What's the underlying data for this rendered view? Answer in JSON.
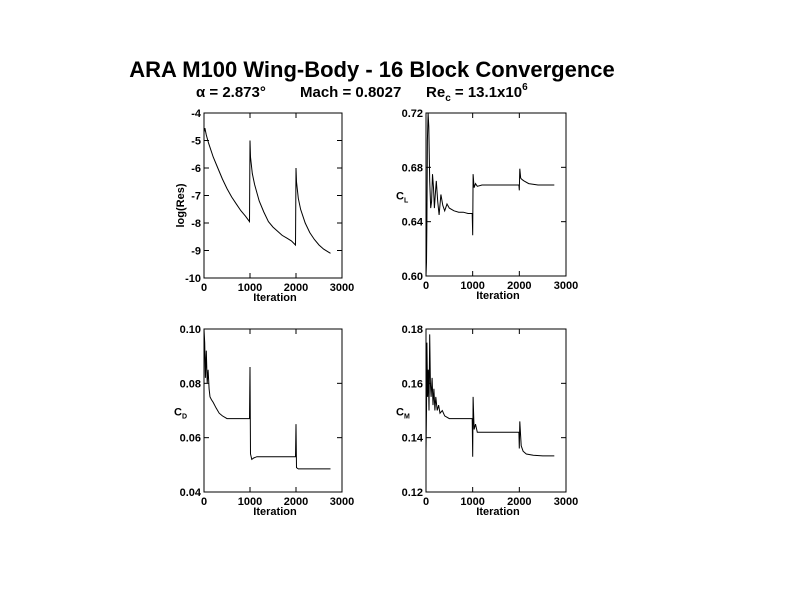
{
  "figure": {
    "title": "ARA M100 Wing-Body - 16 Block Convergence",
    "subtitle": {
      "alpha": "α = 2.873°",
      "mach": "Mach = 0.8027",
      "re_prefix": "Re",
      "re_sub": "c",
      "re_value": " = 13.1x10",
      "re_exp": "6"
    }
  },
  "chart_data": [
    {
      "type": "line",
      "id": "res",
      "xlabel": "Iteration",
      "ylabel": "log(Res)",
      "xlim": [
        0,
        3000
      ],
      "ylim": [
        -10,
        -4
      ],
      "xticks": [
        "0",
        "1000",
        "2000",
        "3000"
      ],
      "yticks": [
        "-10",
        "-9",
        "-8",
        "-7",
        "-6",
        "-5",
        "-4"
      ],
      "grid": false,
      "series": [
        {
          "x": [
            0,
            20,
            50,
            100,
            200,
            300,
            400,
            500,
            600,
            700,
            800,
            900,
            990,
            1000,
            1010,
            1050,
            1100,
            1150,
            1200,
            1300,
            1400,
            1500,
            1600,
            1700,
            1800,
            1900,
            1990,
            2000,
            2010,
            2050,
            2100,
            2200,
            2300,
            2400,
            2500,
            2600,
            2700,
            2750
          ],
          "y": [
            -4.7,
            -4.55,
            -4.8,
            -5.1,
            -5.6,
            -6.0,
            -6.4,
            -6.75,
            -7.05,
            -7.3,
            -7.55,
            -7.75,
            -7.95,
            -5.0,
            -5.6,
            -6.2,
            -6.6,
            -6.9,
            -7.2,
            -7.6,
            -7.95,
            -8.15,
            -8.3,
            -8.45,
            -8.55,
            -8.65,
            -8.8,
            -6.0,
            -6.5,
            -7.1,
            -7.5,
            -8.0,
            -8.35,
            -8.6,
            -8.8,
            -8.95,
            -9.05,
            -9.1
          ]
        }
      ]
    },
    {
      "type": "line",
      "id": "cl",
      "xlabel": "Iteration",
      "ylabel": "C",
      "ylabel_sub": "L",
      "xlim": [
        0,
        3000
      ],
      "ylim": [
        0.6,
        0.72
      ],
      "xticks": [
        "0",
        "1000",
        "2000",
        "3000"
      ],
      "yticks": [
        "0.60",
        "0.64",
        "0.68",
        "0.72"
      ],
      "grid": false,
      "series": [
        {
          "x": [
            0,
            10,
            20,
            30,
            45,
            60,
            80,
            100,
            120,
            140,
            160,
            180,
            200,
            220,
            250,
            280,
            320,
            360,
            400,
            450,
            500,
            600,
            700,
            800,
            900,
            990,
            1000,
            1010,
            1030,
            1060,
            1100,
            1200,
            1400,
            1600,
            1800,
            1990,
            2000,
            2010,
            2030,
            2060,
            2100,
            2200,
            2400,
            2600,
            2750
          ],
          "y": [
            0.6,
            0.61,
            0.64,
            0.7,
            0.72,
            0.71,
            0.67,
            0.65,
            0.655,
            0.675,
            0.665,
            0.65,
            0.66,
            0.67,
            0.655,
            0.645,
            0.66,
            0.652,
            0.648,
            0.653,
            0.65,
            0.648,
            0.647,
            0.647,
            0.646,
            0.646,
            0.63,
            0.675,
            0.665,
            0.668,
            0.666,
            0.667,
            0.667,
            0.667,
            0.667,
            0.667,
            0.663,
            0.679,
            0.672,
            0.671,
            0.67,
            0.668,
            0.667,
            0.667,
            0.667
          ]
        }
      ]
    },
    {
      "type": "line",
      "id": "cd",
      "xlabel": "Iteration",
      "ylabel": "C",
      "ylabel_sub": "D",
      "xlim": [
        0,
        3000
      ],
      "ylim": [
        0.04,
        0.1
      ],
      "xticks": [
        "0",
        "1000",
        "2000",
        "3000"
      ],
      "yticks": [
        "0.04",
        "0.06",
        "0.08",
        "0.10"
      ],
      "grid": false,
      "series": [
        {
          "x": [
            0,
            15,
            30,
            50,
            70,
            90,
            110,
            130,
            160,
            200,
            260,
            330,
            400,
            500,
            600,
            700,
            800,
            900,
            990,
            1000,
            1010,
            1040,
            1080,
            1150,
            1300,
            1500,
            1700,
            1900,
            1990,
            2000,
            2010,
            2050,
            2100,
            2300,
            2500,
            2700,
            2750
          ],
          "y": [
            0.1,
            0.095,
            0.082,
            0.092,
            0.08,
            0.085,
            0.078,
            0.075,
            0.074,
            0.073,
            0.071,
            0.069,
            0.068,
            0.067,
            0.067,
            0.067,
            0.067,
            0.067,
            0.067,
            0.086,
            0.054,
            0.052,
            0.0525,
            0.053,
            0.053,
            0.053,
            0.053,
            0.053,
            0.053,
            0.065,
            0.049,
            0.0485,
            0.0485,
            0.0485,
            0.0485,
            0.0485,
            0.0485
          ]
        }
      ]
    },
    {
      "type": "line",
      "id": "cm",
      "xlabel": "Iteration",
      "ylabel": "C",
      "ylabel_sub": "M",
      "xlim": [
        0,
        3000
      ],
      "ylim": [
        0.12,
        0.18
      ],
      "xticks": [
        "0",
        "1000",
        "2000",
        "3000"
      ],
      "yticks": [
        "0.12",
        "0.14",
        "0.16",
        "0.18"
      ],
      "grid": false,
      "series": [
        {
          "x": [
            0,
            10,
            20,
            35,
            50,
            65,
            80,
            95,
            110,
            130,
            150,
            170,
            190,
            210,
            240,
            270,
            300,
            350,
            400,
            500,
            600,
            700,
            800,
            900,
            990,
            1000,
            1010,
            1030,
            1060,
            1100,
            1200,
            1400,
            1600,
            1800,
            1990,
            2000,
            2010,
            2040,
            2080,
            2150,
            2300,
            2500,
            2700,
            2750
          ],
          "y": [
            0.135,
            0.15,
            0.175,
            0.155,
            0.165,
            0.15,
            0.178,
            0.16,
            0.155,
            0.162,
            0.152,
            0.158,
            0.15,
            0.155,
            0.15,
            0.152,
            0.149,
            0.15,
            0.148,
            0.147,
            0.147,
            0.147,
            0.147,
            0.147,
            0.147,
            0.133,
            0.155,
            0.143,
            0.145,
            0.142,
            0.142,
            0.142,
            0.142,
            0.142,
            0.142,
            0.136,
            0.146,
            0.137,
            0.135,
            0.134,
            0.1335,
            0.1333,
            0.1333,
            0.1333
          ]
        }
      ]
    }
  ]
}
